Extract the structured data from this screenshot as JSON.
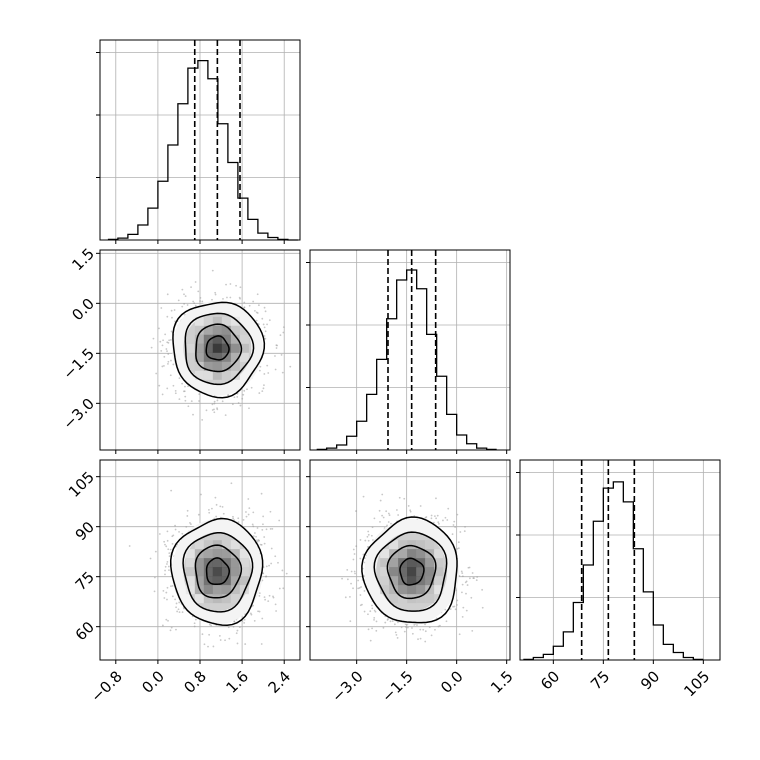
{
  "chart_data": {
    "type": "corner",
    "title": "",
    "parameters": [
      {
        "label": "",
        "range": [
          -1.1,
          2.7
        ],
        "ticks": [
          -0.8,
          0.0,
          0.8,
          1.6,
          2.4
        ],
        "tick_labels": [
          "−0.8",
          "0.0",
          "0.8",
          "1.6",
          "2.4"
        ],
        "quantiles": [
          0.7,
          1.13,
          1.56
        ],
        "hist_bins": [
          -0.95,
          -0.76,
          -0.57,
          -0.38,
          -0.19,
          0.0,
          0.19,
          0.38,
          0.57,
          0.76,
          0.95,
          1.14,
          1.33,
          1.52,
          1.71,
          1.9,
          2.09,
          2.28,
          2.47,
          2.66
        ],
        "hist_counts": [
          1,
          3,
          9,
          24,
          51,
          94,
          152,
          218,
          275,
          287,
          258,
          186,
          124,
          67,
          33,
          11,
          4,
          1,
          0
        ],
        "hist_ymax": 320
      },
      {
        "label": "",
        "range": [
          -4.4,
          1.6
        ],
        "ticks": [
          -3.0,
          -1.5,
          0.0,
          1.5
        ],
        "tick_labels": [
          "−3.0",
          "−1.5",
          "0.0",
          "1.5"
        ],
        "quantiles": [
          -2.06,
          -1.35,
          -0.63
        ],
        "hist_bins": [
          -4.2,
          -3.9,
          -3.6,
          -3.3,
          -3.0,
          -2.7,
          -2.4,
          -2.1,
          -1.8,
          -1.5,
          -1.2,
          -0.9,
          -0.6,
          -0.3,
          0.0,
          0.3,
          0.6,
          0.9,
          1.2
        ],
        "hist_counts": [
          1,
          3,
          8,
          22,
          46,
          89,
          145,
          210,
          272,
          288,
          258,
          185,
          118,
          57,
          24,
          10,
          3,
          1
        ],
        "hist_ymax": 320
      },
      {
        "label": "",
        "range": [
          50,
          110
        ],
        "ticks": [
          60,
          75,
          90,
          105
        ],
        "tick_labels": [
          "60",
          "75",
          "90",
          "105"
        ],
        "quantiles": [
          68.5,
          76.5,
          84.3
        ],
        "hist_bins": [
          51,
          54,
          57,
          60,
          63,
          66,
          69,
          72,
          75,
          78,
          81,
          84,
          87,
          90,
          93,
          96,
          99,
          102,
          105
        ],
        "hist_counts": [
          1,
          4,
          9,
          22,
          45,
          92,
          152,
          222,
          275,
          285,
          253,
          178,
          109,
          56,
          25,
          12,
          4,
          1
        ],
        "hist_ymax": 320
      }
    ],
    "pairs": [
      {
        "x": 0,
        "y": 1,
        "mean": [
          1.13,
          -1.35
        ],
        "sd": [
          0.43,
          0.71
        ],
        "corr": 0.0
      },
      {
        "x": 0,
        "y": 2,
        "mean": [
          1.13,
          76.5
        ],
        "sd": [
          0.43,
          7.9
        ],
        "corr": 0.0
      },
      {
        "x": 1,
        "y": 2,
        "mean": [
          -1.35,
          76.5
        ],
        "sd": [
          0.71,
          7.9
        ],
        "corr": 0.0
      }
    ],
    "contour_levels_sigma": [
      0.5,
      1.0,
      1.5,
      2.0
    ],
    "grid": true,
    "legend": "none",
    "colors": {
      "line": "#000000",
      "grid": "#b0b0b0",
      "point": "#9a9a9a",
      "density": "#000000"
    }
  }
}
